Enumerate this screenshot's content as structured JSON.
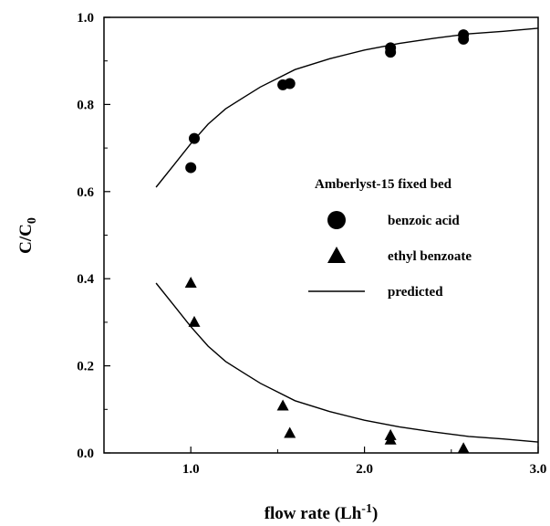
{
  "chart_data": {
    "type": "scatter",
    "title": "",
    "xlabel": "flow rate (Lh",
    "xlabel_superscript": "-1",
    "xlabel_close": ")",
    "ylabel": "C/C",
    "ylabel_subscript": "0",
    "xlim": [
      0.5,
      3.0
    ],
    "ylim": [
      0.0,
      1.0
    ],
    "x_ticks": [
      1.0,
      2.0,
      3.0
    ],
    "x_tick_labels": [
      "1.0",
      "2.0",
      "3.0"
    ],
    "y_ticks": [
      0.0,
      0.2,
      0.4,
      0.6,
      0.8,
      1.0
    ],
    "y_tick_labels": [
      "0.0",
      "0.2",
      "0.4",
      "0.6",
      "0.8",
      "1.0"
    ],
    "grid": false,
    "legend": {
      "title": "Amberlyst-15 fixed bed",
      "placement": "center-right",
      "entries": [
        {
          "label": "benzoic acid",
          "marker": "circle"
        },
        {
          "label": "ethyl benzoate",
          "marker": "triangle"
        },
        {
          "label": "predicted",
          "marker": "line"
        }
      ]
    },
    "series": [
      {
        "name": "benzoic acid",
        "marker": "circle",
        "x": [
          1.0,
          1.02,
          1.53,
          1.57,
          2.15,
          2.15,
          2.57,
          2.57
        ],
        "y": [
          0.655,
          0.722,
          0.845,
          0.848,
          0.92,
          0.93,
          0.95,
          0.96
        ]
      },
      {
        "name": "ethyl benzoate",
        "marker": "triangle",
        "x": [
          1.0,
          1.02,
          1.53,
          1.57,
          2.15,
          2.15,
          2.57
        ],
        "y": [
          0.39,
          0.3,
          0.108,
          0.045,
          0.04,
          0.03,
          0.01
        ]
      },
      {
        "name": "predicted",
        "marker": "line",
        "x": [
          0.8,
          0.9,
          1.0,
          1.1,
          1.2,
          1.3,
          1.4,
          1.5,
          1.6,
          1.8,
          2.0,
          2.2,
          2.4,
          2.6,
          2.8,
          3.0
        ],
        "y": [
          0.61,
          0.66,
          0.71,
          0.755,
          0.79,
          0.815,
          0.84,
          0.86,
          0.88,
          0.905,
          0.925,
          0.94,
          0.952,
          0.962,
          0.968,
          0.975
        ]
      },
      {
        "name": "predicted",
        "marker": "line",
        "x": [
          0.8,
          0.9,
          1.0,
          1.1,
          1.2,
          1.3,
          1.4,
          1.5,
          1.6,
          1.8,
          2.0,
          2.2,
          2.4,
          2.6,
          2.8,
          3.0
        ],
        "y": [
          0.39,
          0.34,
          0.29,
          0.245,
          0.21,
          0.185,
          0.16,
          0.14,
          0.12,
          0.095,
          0.075,
          0.06,
          0.048,
          0.038,
          0.032,
          0.025
        ]
      }
    ]
  }
}
